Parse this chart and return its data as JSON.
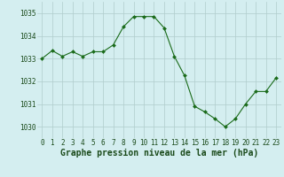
{
  "x": [
    0,
    1,
    2,
    3,
    4,
    5,
    6,
    7,
    8,
    9,
    10,
    11,
    12,
    13,
    14,
    15,
    16,
    17,
    18,
    19,
    20,
    21,
    22,
    23
  ],
  "y": [
    1033.0,
    1033.35,
    1033.1,
    1033.3,
    1033.1,
    1033.3,
    1033.3,
    1033.6,
    1034.4,
    1034.85,
    1034.85,
    1034.85,
    1034.35,
    1033.1,
    1032.25,
    1030.9,
    1030.65,
    1030.35,
    1030.0,
    1030.35,
    1031.0,
    1031.55,
    1031.55,
    1032.15
  ],
  "line_color": "#1a6b1a",
  "marker_color": "#1a6b1a",
  "bg_color": "#d4eef0",
  "grid_color": "#b0cccc",
  "xlabel": "Graphe pression niveau de la mer (hPa)",
  "ylim": [
    1029.5,
    1035.5
  ],
  "xlim": [
    -0.5,
    23.5
  ],
  "yticks": [
    1030,
    1031,
    1032,
    1033,
    1034,
    1035
  ],
  "xticks": [
    0,
    1,
    2,
    3,
    4,
    5,
    6,
    7,
    8,
    9,
    10,
    11,
    12,
    13,
    14,
    15,
    16,
    17,
    18,
    19,
    20,
    21,
    22,
    23
  ],
  "tick_fontsize": 5.5,
  "xlabel_fontsize": 7.0
}
